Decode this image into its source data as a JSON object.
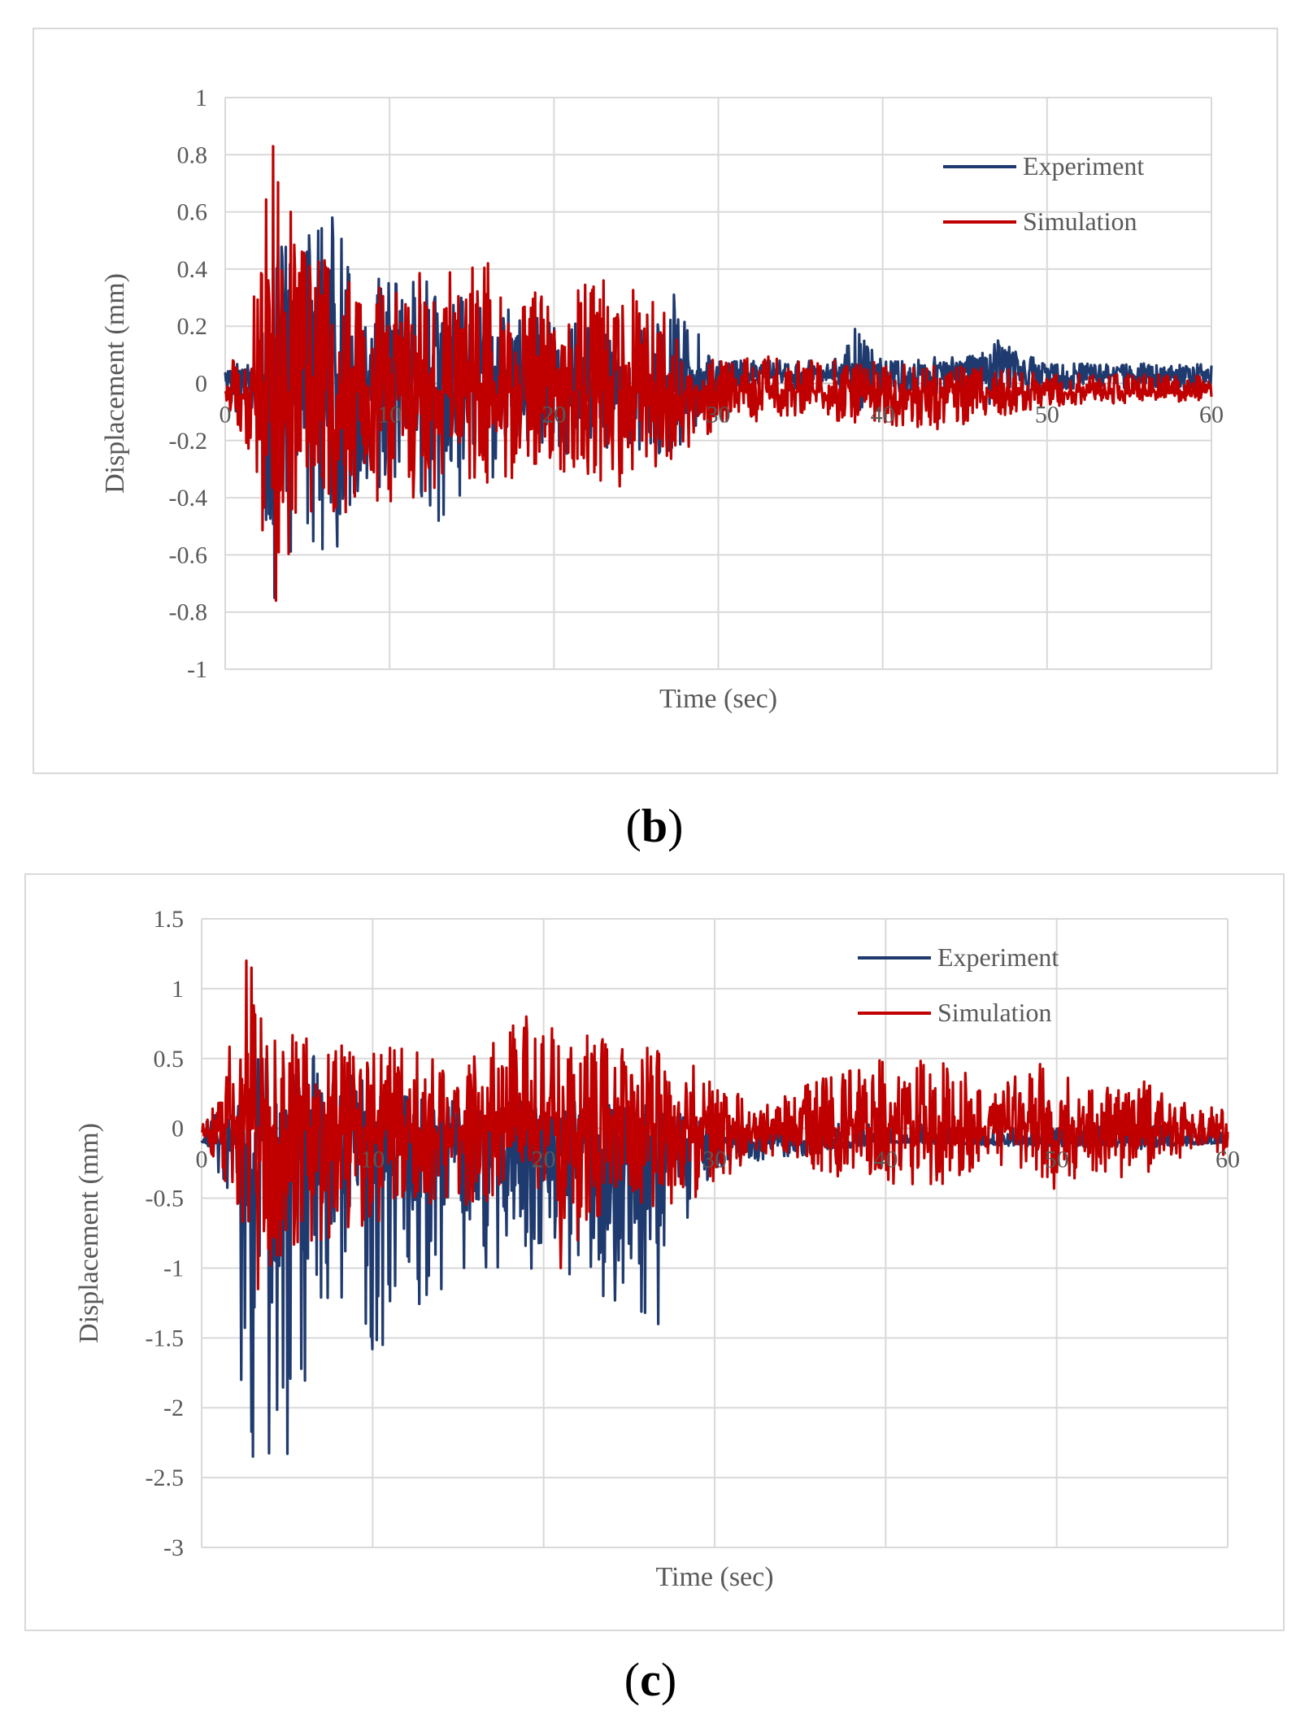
{
  "chart_data": [
    {
      "panel": "b",
      "type": "line",
      "panel_label": "b",
      "xlabel": "Time (sec)",
      "ylabel": "Displacement (mm)",
      "xlim": [
        0,
        60
      ],
      "ylim": [
        -1,
        1
      ],
      "x_ticks": [
        "0",
        "10",
        "20",
        "30",
        "40",
        "50",
        "60"
      ],
      "y_ticks": [
        "1",
        "0.8",
        "0.6",
        "0.4",
        "0.2",
        "0",
        "-0.2",
        "-0.4",
        "-0.6",
        "-0.8",
        "-1"
      ],
      "y_tick_values": [
        1,
        0.8,
        0.6,
        0.4,
        0.2,
        0,
        -0.2,
        -0.4,
        -0.6,
        -0.8,
        -1
      ],
      "legend": [
        "Experiment",
        "Simulation"
      ],
      "legend_position": "top-right",
      "grid": true,
      "series": [
        {
          "name": "Experiment",
          "color": "#1f3a6e",
          "envelope": [
            [
              0,
              0.05
            ],
            [
              2,
              0.1
            ],
            [
              2.8,
              0.55
            ],
            [
              4,
              0.5
            ],
            [
              6.5,
              0.58
            ],
            [
              8,
              0.4
            ],
            [
              10,
              0.35
            ],
            [
              13,
              0.38
            ],
            [
              15,
              0.3
            ],
            [
              20,
              0.22
            ],
            [
              25,
              0.18
            ],
            [
              27.3,
              0.31
            ],
            [
              30,
              0.08
            ],
            [
              37,
              0.08
            ],
            [
              38.3,
              0.19
            ],
            [
              40,
              0.08
            ],
            [
              45,
              0.1
            ],
            [
              47,
              0.15
            ],
            [
              50,
              0.07
            ],
            [
              60,
              0.07
            ]
          ],
          "envelope_neg": [
            [
              0,
              -0.05
            ],
            [
              2,
              -0.2
            ],
            [
              2.8,
              -0.75
            ],
            [
              4,
              -0.6
            ],
            [
              6.8,
              -0.57
            ],
            [
              8,
              -0.45
            ],
            [
              10,
              -0.38
            ],
            [
              13,
              -0.48
            ],
            [
              15,
              -0.35
            ],
            [
              20,
              -0.28
            ],
            [
              25,
              -0.25
            ],
            [
              27.3,
              -0.28
            ],
            [
              30,
              -0.06
            ],
            [
              37,
              -0.06
            ],
            [
              40,
              -0.05
            ],
            [
              50,
              -0.04
            ],
            [
              60,
              -0.04
            ]
          ],
          "peaks": [
            [
              3,
              -0.75
            ],
            [
              6.5,
              0.58
            ],
            [
              6.8,
              -0.57
            ],
            [
              13,
              -0.48
            ],
            [
              27.3,
              0.31
            ],
            [
              38.3,
              0.19
            ],
            [
              47,
              0.15
            ]
          ],
          "baseline": 0.02,
          "late_positive_bias": true
        },
        {
          "name": "Simulation",
          "color": "#c00000",
          "envelope": [
            [
              0,
              0.03
            ],
            [
              1.5,
              0.2
            ],
            [
              2.9,
              0.83
            ],
            [
              4,
              0.65
            ],
            [
              6,
              0.5
            ],
            [
              8,
              0.4
            ],
            [
              10,
              0.38
            ],
            [
              16,
              0.42
            ],
            [
              20,
              0.3
            ],
            [
              22.5,
              0.36
            ],
            [
              26,
              0.34
            ],
            [
              28,
              0.1
            ],
            [
              30,
              0.1
            ],
            [
              35,
              0.09
            ],
            [
              40,
              0.08
            ],
            [
              50,
              0.04
            ],
            [
              60,
              0.03
            ]
          ],
          "envelope_neg": [
            [
              0,
              -0.05
            ],
            [
              1.5,
              -0.3
            ],
            [
              3,
              -0.76
            ],
            [
              4,
              -0.6
            ],
            [
              6,
              -0.48
            ],
            [
              10,
              -0.42
            ],
            [
              16,
              -0.35
            ],
            [
              20,
              -0.3
            ],
            [
              24,
              -0.36
            ],
            [
              27,
              -0.3
            ],
            [
              30,
              -0.15
            ],
            [
              35,
              -0.12
            ],
            [
              43,
              -0.17
            ],
            [
              50,
              -0.08
            ],
            [
              60,
              -0.06
            ]
          ],
          "peaks": [
            [
              2.9,
              0.83
            ],
            [
              3.1,
              -0.76
            ],
            [
              4,
              0.6
            ],
            [
              16,
              0.42
            ],
            [
              23,
              0.36
            ],
            [
              24,
              -0.36
            ]
          ],
          "baseline": -0.03,
          "late_positive_bias": false
        }
      ]
    },
    {
      "panel": "c",
      "type": "line",
      "panel_label": "c",
      "xlabel": "Time (sec)",
      "ylabel": "Displacement (mm)",
      "xlim": [
        0,
        60
      ],
      "ylim": [
        -3,
        1.5
      ],
      "x_ticks": [
        "0",
        "10",
        "20",
        "30",
        "40",
        "50",
        "60"
      ],
      "y_ticks": [
        "1.5",
        "1",
        "0.5",
        "0",
        "-0.5",
        "-1",
        "-1.5",
        "-2",
        "-2.5",
        "-3"
      ],
      "y_tick_values": [
        1.5,
        1,
        0.5,
        0,
        -0.5,
        -1,
        -1.5,
        -2,
        -2.5,
        -3
      ],
      "legend": [
        "Experiment",
        "Simulation"
      ],
      "legend_position": "top-right",
      "grid": true,
      "series": [
        {
          "name": "Experiment",
          "color": "#1f3a6e",
          "envelope": [
            [
              0,
              0.05
            ],
            [
              2,
              0.2
            ],
            [
              3,
              0.5
            ],
            [
              6,
              0.6
            ],
            [
              10,
              0.3
            ],
            [
              15,
              0.2
            ],
            [
              20,
              0.2
            ],
            [
              25,
              0.2
            ],
            [
              30,
              0.05
            ],
            [
              60,
              0.02
            ]
          ],
          "envelope_neg": [
            [
              0,
              -0.05
            ],
            [
              2,
              -0.6
            ],
            [
              3,
              -2.35
            ],
            [
              5,
              -2.35
            ],
            [
              8,
              -1.2
            ],
            [
              10,
              -1.6
            ],
            [
              14,
              -1.15
            ],
            [
              20,
              -1.0
            ],
            [
              22,
              -1.15
            ],
            [
              26,
              -1.4
            ],
            [
              28,
              -0.8
            ],
            [
              30,
              -0.3
            ],
            [
              40,
              -0.1
            ],
            [
              55,
              -0.15
            ],
            [
              60,
              -0.1
            ]
          ],
          "peaks": [
            [
              3,
              -2.35
            ],
            [
              5,
              -2.33
            ],
            [
              2.3,
              -1.8
            ],
            [
              10,
              -1.58
            ],
            [
              10.6,
              -1.55
            ],
            [
              14,
              -1.15
            ],
            [
              26.7,
              -1.4
            ]
          ],
          "baseline": -0.1,
          "late_positive_bias": false
        },
        {
          "name": "Simulation",
          "color": "#c00000",
          "envelope": [
            [
              0,
              0.02
            ],
            [
              1,
              0.3
            ],
            [
              2.6,
              1.2
            ],
            [
              4,
              0.9
            ],
            [
              6,
              0.7
            ],
            [
              10,
              0.6
            ],
            [
              15,
              0.55
            ],
            [
              19,
              0.8
            ],
            [
              22,
              0.75
            ],
            [
              27,
              0.55
            ],
            [
              30,
              0.4
            ],
            [
              32,
              0.2
            ],
            [
              36,
              0.35
            ],
            [
              40,
              0.5
            ],
            [
              44,
              0.5
            ],
            [
              46,
              0.25
            ],
            [
              49,
              0.48
            ],
            [
              52,
              0.3
            ],
            [
              55,
              0.35
            ],
            [
              58,
              0.15
            ],
            [
              60,
              0.32
            ]
          ],
          "envelope_neg": [
            [
              0,
              -0.02
            ],
            [
              1,
              -0.3
            ],
            [
              3,
              -1.15
            ],
            [
              5,
              -0.9
            ],
            [
              10,
              -0.7
            ],
            [
              15,
              -0.55
            ],
            [
              20,
              -0.7
            ],
            [
              22,
              -0.8
            ],
            [
              25,
              -0.6
            ],
            [
              30,
              -0.5
            ],
            [
              32,
              -0.2
            ],
            [
              36,
              -0.3
            ],
            [
              40,
              -0.45
            ],
            [
              44,
              -0.4
            ],
            [
              46,
              -0.2
            ],
            [
              49,
              -0.5
            ],
            [
              52,
              -0.3
            ],
            [
              55,
              -0.4
            ],
            [
              58,
              -0.15
            ],
            [
              60,
              -0.2
            ]
          ],
          "peaks": [
            [
              2.6,
              1.2
            ],
            [
              2.9,
              1.15
            ],
            [
              3.3,
              -1.15
            ],
            [
              19,
              0.8
            ],
            [
              21,
              -1.0
            ],
            [
              22,
              -0.8
            ]
          ],
          "baseline": 0.0,
          "late_positive_bias": false
        }
      ]
    }
  ]
}
